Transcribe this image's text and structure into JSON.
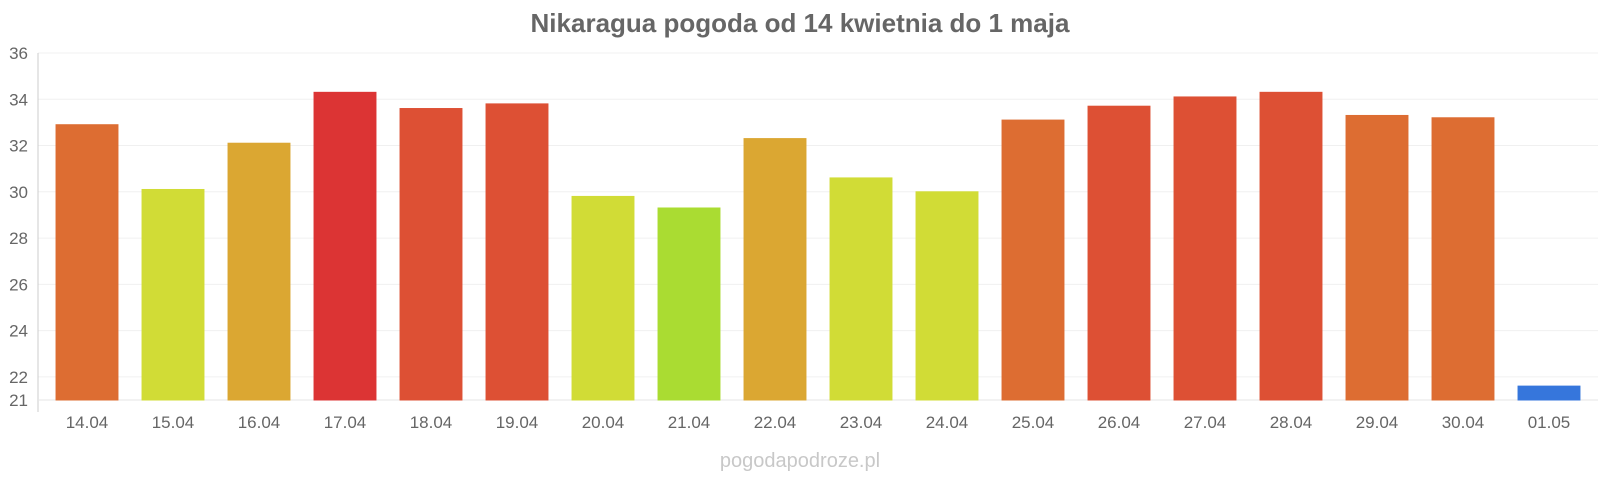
{
  "chart_data": {
    "type": "bar",
    "title": "Nikaragua pogoda od 14 kwietnia do 1 maja",
    "xlabel": "",
    "ylabel": "",
    "categories": [
      "14.04",
      "15.04",
      "16.04",
      "17.04",
      "18.04",
      "19.04",
      "20.04",
      "21.04",
      "22.04",
      "23.04",
      "24.04",
      "25.04",
      "26.04",
      "27.04",
      "28.04",
      "29.04",
      "30.04",
      "01.05"
    ],
    "values": [
      32.9,
      30.1,
      32.1,
      34.3,
      33.6,
      33.8,
      29.8,
      29.3,
      32.3,
      30.6,
      30.0,
      33.1,
      33.7,
      34.1,
      34.3,
      33.3,
      33.2,
      21.6
    ],
    "colors": [
      "#dd6d32",
      "#d1dc36",
      "#dba732",
      "#dc3434",
      "#dd5034",
      "#dd5034",
      "#d1dc36",
      "#aadc32",
      "#dba732",
      "#d1dc36",
      "#d1dc36",
      "#dd6d32",
      "#dd5034",
      "#dd5034",
      "#dd5034",
      "#dd6d32",
      "#dd6d32",
      "#3676dc"
    ],
    "yticks": [
      21,
      22,
      24,
      26,
      28,
      30,
      32,
      34,
      36
    ],
    "ylim": [
      21,
      36
    ],
    "grid": true,
    "legend": "none"
  },
  "watermark": "pogodapodroze.pl"
}
